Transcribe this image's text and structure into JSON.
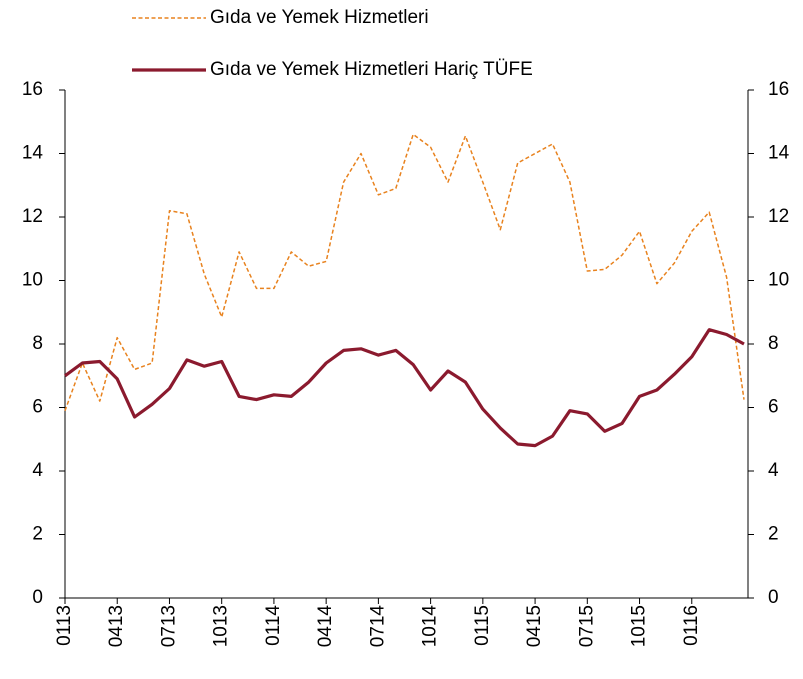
{
  "chart_data": {
    "type": "line",
    "categories": [
      "0113",
      null,
      null,
      "0413",
      null,
      null,
      "0713",
      null,
      null,
      "1013",
      null,
      null,
      "0114",
      null,
      null,
      "0414",
      null,
      null,
      "0714",
      null,
      null,
      "1014",
      null,
      null,
      "0115",
      null,
      null,
      "0415",
      null,
      null,
      "0715",
      null,
      null,
      "1015",
      null,
      null,
      "0116",
      null,
      null,
      null
    ],
    "series": [
      {
        "name": "Gıda ve Yemek Hizmetleri",
        "color": "#e8821e",
        "dash": true,
        "values": [
          5.9,
          7.4,
          6.2,
          8.2,
          7.2,
          7.4,
          12.2,
          12.1,
          10.2,
          8.85,
          10.9,
          9.75,
          9.75,
          10.9,
          10.45,
          10.6,
          13.1,
          14.0,
          12.7,
          12.9,
          14.6,
          14.2,
          13.1,
          14.55,
          13.1,
          11.6,
          13.7,
          14.0,
          14.3,
          13.1,
          10.3,
          10.35,
          10.8,
          11.55,
          9.9,
          10.55,
          11.55,
          12.15,
          10.1,
          6.25
        ]
      },
      {
        "name": "Gıda ve Yemek Hizmetleri Hariç TÜFE",
        "color": "#8b1a2e",
        "dash": false,
        "values": [
          7.0,
          7.4,
          7.45,
          6.9,
          5.7,
          6.1,
          6.6,
          7.5,
          7.3,
          7.45,
          6.35,
          6.25,
          6.4,
          6.35,
          6.8,
          7.4,
          7.8,
          7.85,
          7.65,
          7.8,
          7.35,
          6.55,
          7.15,
          6.8,
          5.95,
          5.35,
          4.85,
          4.8,
          5.1,
          5.9,
          5.8,
          5.25,
          5.5,
          6.35,
          6.55,
          7.05,
          7.6,
          8.45,
          8.3,
          8.0
        ]
      }
    ],
    "ylim": [
      0,
      16
    ],
    "yticks": [
      0,
      2,
      4,
      6,
      8,
      10,
      12,
      14,
      16
    ],
    "y2lim": [
      0,
      16
    ],
    "y2ticks": [
      0,
      2,
      4,
      6,
      8,
      10,
      12,
      14,
      16
    ]
  }
}
